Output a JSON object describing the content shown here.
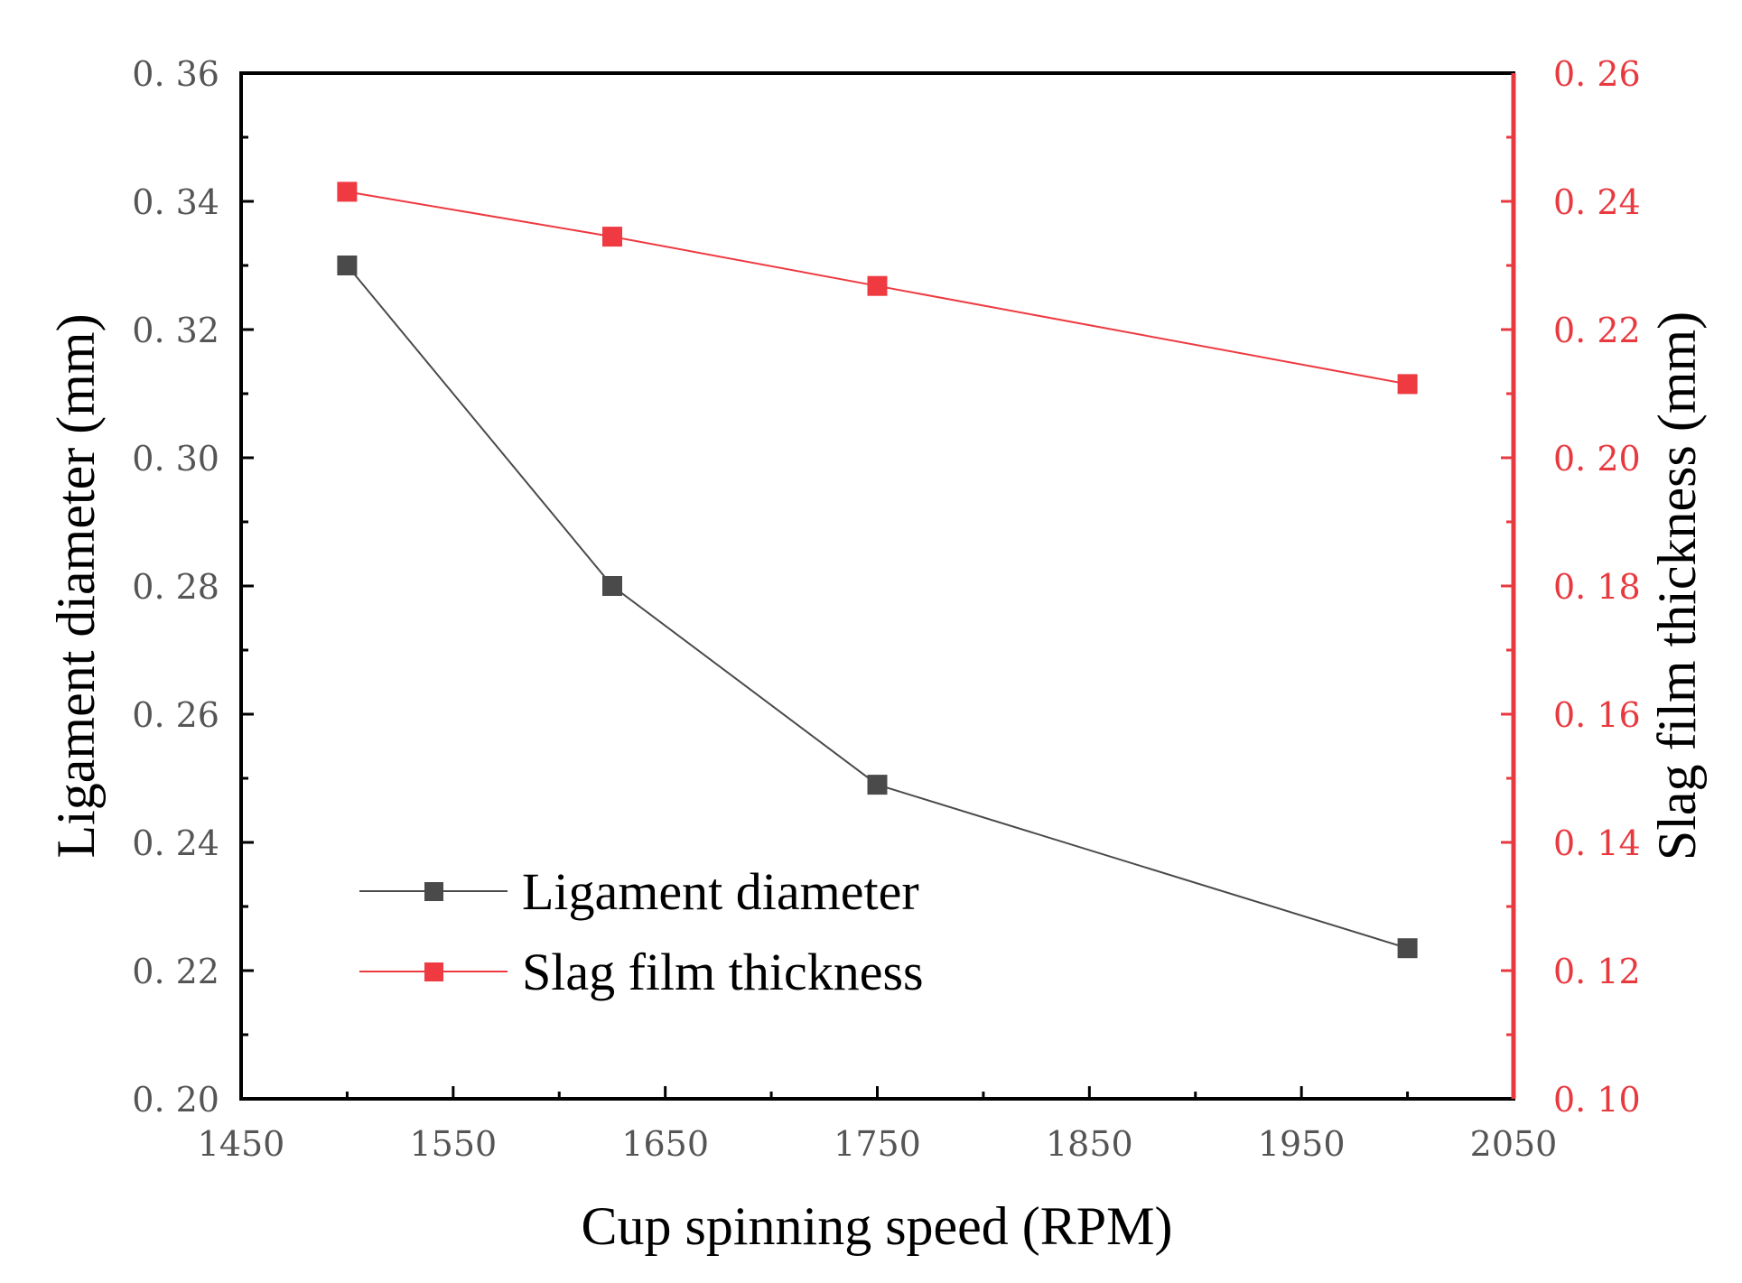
{
  "chart_data": {
    "type": "line",
    "xlabel": "Cup spinning speed (RPM)",
    "ylabel_left": "Ligament diameter (mm)",
    "ylabel_right": "Slag film thickness (mm)",
    "xlim": [
      1450,
      2050
    ],
    "ylim_left": [
      0.2,
      0.36
    ],
    "ylim_right": [
      0.1,
      0.26
    ],
    "x_ticks": [
      "1450",
      "1550",
      "1650",
      "1750",
      "1850",
      "1950",
      "2050"
    ],
    "y_left_ticks": [
      "0. 20",
      "0. 22",
      "0. 24",
      "0. 26",
      "0. 28",
      "0. 30",
      "0. 32",
      "0. 34",
      "0. 36"
    ],
    "y_right_ticks": [
      "0. 10",
      "0. 12",
      "0. 14",
      "0. 16",
      "0. 18",
      "0. 20",
      "0. 22",
      "0. 24",
      "0. 26"
    ],
    "legend_position": "lower-left",
    "series": [
      {
        "name": "Ligament diameter",
        "axis": "left",
        "color": "#4a4a4a",
        "x": [
          1500,
          1625,
          1750,
          2000
        ],
        "values": [
          0.33,
          0.28,
          0.249,
          0.2235
        ]
      },
      {
        "name": "Slag film thickness",
        "axis": "right",
        "color": "#ee3a40",
        "x": [
          1500,
          1625,
          1750,
          2000
        ],
        "values": [
          0.2415,
          0.2345,
          0.2268,
          0.2115
        ]
      }
    ]
  }
}
